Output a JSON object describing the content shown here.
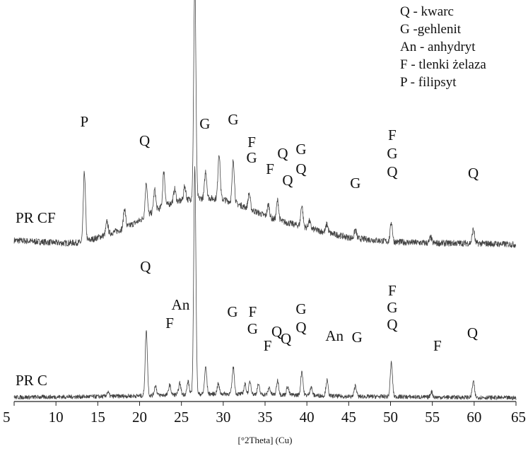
{
  "chart_data": {
    "type": "line",
    "title": "",
    "xlabel": "[°2Theta] (Cu)",
    "ylabel": "",
    "xlim": [
      5,
      65
    ],
    "xticks": [
      5,
      10,
      15,
      20,
      25,
      30,
      35,
      40,
      45,
      50,
      55,
      60,
      65
    ],
    "grid": false,
    "y_scale": "relative intensity (arbitrary, no axis shown)",
    "legend": {
      "placement": "top-right",
      "entries": [
        "Q - kwarc",
        "G -gehlenit",
        "An - anhydryt",
        "F - tlenki żelaza",
        "P - filipsyt"
      ]
    },
    "series": [
      {
        "name": "PR CF",
        "baseline": [
          [
            5,
            12
          ],
          [
            8,
            10
          ],
          [
            11,
            8
          ],
          [
            13,
            9
          ],
          [
            14.5,
            14
          ],
          [
            16,
            20
          ],
          [
            18,
            28
          ],
          [
            20,
            40
          ],
          [
            22,
            55
          ],
          [
            24,
            66
          ],
          [
            26,
            70
          ],
          [
            28,
            72
          ],
          [
            30,
            70
          ],
          [
            32,
            62
          ],
          [
            34,
            52
          ],
          [
            36,
            42
          ],
          [
            38,
            36
          ],
          [
            40,
            30
          ],
          [
            42,
            24
          ],
          [
            45,
            16
          ],
          [
            50,
            10
          ],
          [
            55,
            8
          ],
          [
            60,
            8
          ],
          [
            65,
            6
          ]
        ],
        "peaks": [
          {
            "x": 13.4,
            "h": 98
          },
          {
            "x": 16.1,
            "h": 18
          },
          {
            "x": 18.2,
            "h": 28
          },
          {
            "x": 20.8,
            "h": 48
          },
          {
            "x": 21.8,
            "h": 30
          },
          {
            "x": 22.9,
            "h": 50
          },
          {
            "x": 24.2,
            "h": 18
          },
          {
            "x": 25.4,
            "h": 20
          },
          {
            "x": 26.6,
            "h": 310
          },
          {
            "x": 27.9,
            "h": 38
          },
          {
            "x": 29.5,
            "h": 65
          },
          {
            "x": 31.2,
            "h": 60
          },
          {
            "x": 33.1,
            "h": 22
          },
          {
            "x": 35.4,
            "h": 18
          },
          {
            "x": 36.5,
            "h": 28
          },
          {
            "x": 39.4,
            "h": 30
          },
          {
            "x": 40.3,
            "h": 10
          },
          {
            "x": 42.4,
            "h": 12
          },
          {
            "x": 45.8,
            "h": 12
          },
          {
            "x": 50.1,
            "h": 28
          },
          {
            "x": 54.8,
            "h": 8
          },
          {
            "x": 59.9,
            "h": 20
          }
        ],
        "labels": [
          {
            "text": "P",
            "x": 13.4,
            "y": 103
          },
          {
            "text": "Q",
            "x": 20.6,
            "y": 76
          },
          {
            "text": "G",
            "x": 27.8,
            "y": 100
          },
          {
            "text": "G",
            "x": 31.2,
            "y": 106
          },
          {
            "text": "F",
            "x": 33.4,
            "y": 74
          },
          {
            "text": "G",
            "x": 33.4,
            "y": 52
          },
          {
            "text": "F",
            "x": 35.6,
            "y": 36
          },
          {
            "text": "Q",
            "x": 37.1,
            "y": 58
          },
          {
            "text": "Q",
            "x": 37.7,
            "y": 20
          },
          {
            "text": "G",
            "x": 39.3,
            "y": 64
          },
          {
            "text": "Q",
            "x": 39.3,
            "y": 36
          },
          {
            "text": "G",
            "x": 45.8,
            "y": 16
          },
          {
            "text": "F",
            "x": 50.2,
            "y": 84
          },
          {
            "text": "G",
            "x": 50.2,
            "y": 58
          },
          {
            "text": "Q",
            "x": 50.2,
            "y": 32
          },
          {
            "text": "Q",
            "x": 59.9,
            "y": 30
          }
        ]
      },
      {
        "name": "PR C",
        "baseline": [
          [
            5,
            4
          ],
          [
            15,
            5
          ],
          [
            20,
            6
          ],
          [
            25,
            8
          ],
          [
            30,
            9
          ],
          [
            35,
            8
          ],
          [
            40,
            7
          ],
          [
            45,
            5
          ],
          [
            50,
            5
          ],
          [
            55,
            4
          ],
          [
            60,
            4
          ],
          [
            65,
            3
          ]
        ],
        "peaks": [
          {
            "x": 16.2,
            "h": 6
          },
          {
            "x": 20.8,
            "h": 92
          },
          {
            "x": 21.9,
            "h": 14
          },
          {
            "x": 23.6,
            "h": 14
          },
          {
            "x": 24.8,
            "h": 16
          },
          {
            "x": 25.8,
            "h": 18
          },
          {
            "x": 26.6,
            "h": 320
          },
          {
            "x": 27.9,
            "h": 38
          },
          {
            "x": 29.4,
            "h": 14
          },
          {
            "x": 31.2,
            "h": 38
          },
          {
            "x": 32.6,
            "h": 14
          },
          {
            "x": 33.2,
            "h": 18
          },
          {
            "x": 34.2,
            "h": 14
          },
          {
            "x": 35.5,
            "h": 10
          },
          {
            "x": 36.5,
            "h": 20
          },
          {
            "x": 37.7,
            "h": 12
          },
          {
            "x": 39.4,
            "h": 34
          },
          {
            "x": 40.5,
            "h": 12
          },
          {
            "x": 42.4,
            "h": 22
          },
          {
            "x": 45.8,
            "h": 16
          },
          {
            "x": 50.1,
            "h": 48
          },
          {
            "x": 54.9,
            "h": 8
          },
          {
            "x": 59.9,
            "h": 22
          }
        ],
        "labels": [
          {
            "text": "Q",
            "x": 20.7,
            "y": 112
          },
          {
            "text": "An",
            "x": 24.9,
            "y": 58
          },
          {
            "text": "F",
            "x": 23.6,
            "y": 32
          },
          {
            "text": "G",
            "x": 31.1,
            "y": 48
          },
          {
            "text": "F",
            "x": 33.5,
            "y": 48
          },
          {
            "text": "G",
            "x": 33.5,
            "y": 24
          },
          {
            "text": "F",
            "x": 35.3,
            "y": 0
          },
          {
            "text": "Q",
            "x": 36.4,
            "y": 20
          },
          {
            "text": "Q",
            "x": 37.5,
            "y": 10
          },
          {
            "text": "G",
            "x": 39.3,
            "y": 52
          },
          {
            "text": "Q",
            "x": 39.3,
            "y": 26
          },
          {
            "text": "An",
            "x": 43.3,
            "y": 14
          },
          {
            "text": "G",
            "x": 46.0,
            "y": 12
          },
          {
            "text": "F",
            "x": 50.2,
            "y": 78
          },
          {
            "text": "G",
            "x": 50.2,
            "y": 54
          },
          {
            "text": "Q",
            "x": 50.2,
            "y": 30
          },
          {
            "text": "F",
            "x": 55.6,
            "y": 0
          },
          {
            "text": "Q",
            "x": 59.8,
            "y": 18
          }
        ]
      }
    ]
  }
}
